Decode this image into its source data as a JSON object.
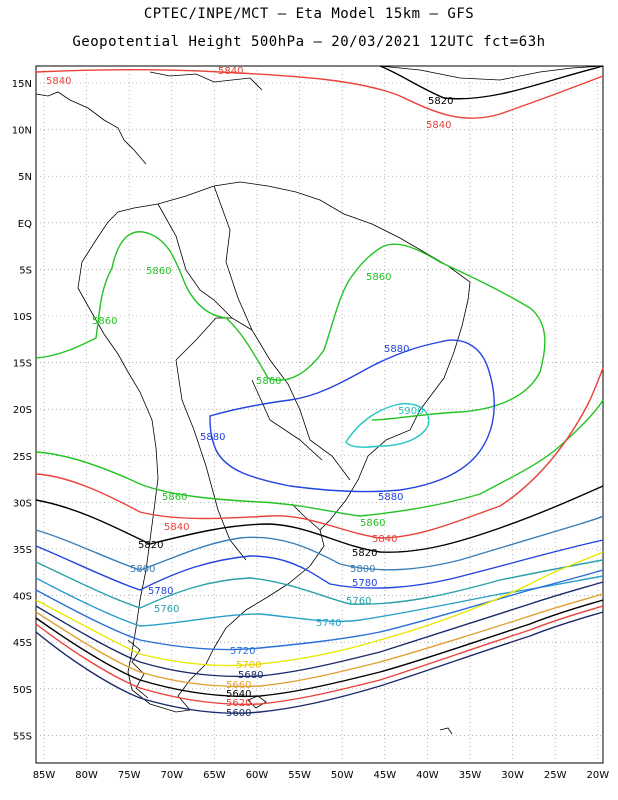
{
  "title_line1": "CPTEC/INPE/MCT –  Eta Model 15km – GFS",
  "title_line2": "Geopotential Height 500hPa – 20/03/2021 12UTC fct=63h",
  "lat_ticks": [
    "15N",
    "10N",
    "5N",
    "EQ",
    "5S",
    "10S",
    "15S",
    "20S",
    "25S",
    "30S",
    "35S",
    "40S",
    "45S",
    "50S",
    "55S"
  ],
  "lon_ticks": [
    "85W",
    "80W",
    "75W",
    "70W",
    "65W",
    "60W",
    "55W",
    "50W",
    "45W",
    "40W",
    "35W",
    "30W",
    "25W",
    "20W"
  ],
  "contour_labels": [
    {
      "text": "5840",
      "color": "#e8423a"
    },
    {
      "text": "5840",
      "color": "#e8423a"
    },
    {
      "text": "5820",
      "color": "#000000"
    },
    {
      "text": "5840",
      "color": "#e8423a"
    },
    {
      "text": "5860",
      "color": "#22c322"
    },
    {
      "text": "5860",
      "color": "#22c322"
    },
    {
      "text": "5860",
      "color": "#22c322"
    },
    {
      "text": "5880",
      "color": "#2244dd"
    },
    {
      "text": "5860",
      "color": "#22c322"
    },
    {
      "text": "5900",
      "color": "#22c6c6"
    },
    {
      "text": "5880",
      "color": "#2244dd"
    },
    {
      "text": "5880",
      "color": "#2244dd"
    },
    {
      "text": "5860",
      "color": "#22c322"
    },
    {
      "text": "5860",
      "color": "#22c322"
    },
    {
      "text": "5840",
      "color": "#e8423a"
    },
    {
      "text": "5840",
      "color": "#e8423a"
    },
    {
      "text": "5820",
      "color": "#000000"
    },
    {
      "text": "5820",
      "color": "#000000"
    },
    {
      "text": "5800",
      "color": "#3a7fb8"
    },
    {
      "text": "5800",
      "color": "#3a7fb8"
    },
    {
      "text": "5780",
      "color": "#2244dd"
    },
    {
      "text": "5780",
      "color": "#2244dd"
    },
    {
      "text": "5760",
      "color": "#2aa0a8"
    },
    {
      "text": "5760",
      "color": "#2aa0a8"
    },
    {
      "text": "5740",
      "color": "#2a9fc8"
    },
    {
      "text": "5720",
      "color": "#2a6fd8"
    },
    {
      "text": "5700",
      "color": "#e8c800"
    },
    {
      "text": "5680",
      "color": "#1a2a6a"
    },
    {
      "text": "5660",
      "color": "#e0a030"
    },
    {
      "text": "5640",
      "color": "#000000"
    },
    {
      "text": "5620",
      "color": "#e8423a"
    },
    {
      "text": "5600",
      "color": "#1a2a6a"
    }
  ],
  "colors": {
    "c5900": "#22c6c6",
    "c5880": "#2244dd",
    "c5860": "#22c322",
    "c5840": "#e8423a",
    "c5820": "#000000"
  }
}
